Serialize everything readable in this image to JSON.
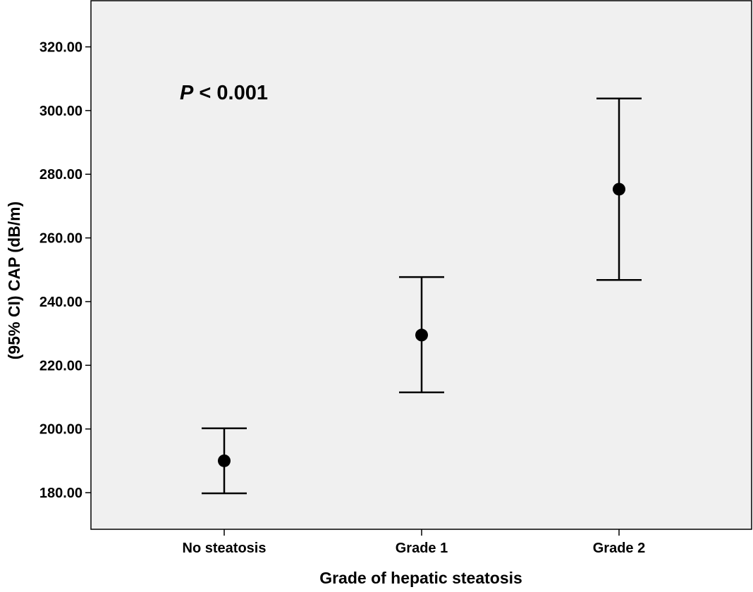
{
  "chart_data": {
    "type": "errorbar",
    "title": "",
    "xlabel": "Grade of hepatic steatosis",
    "ylabel": "(95% CI) CAP (dB/m)",
    "categories": [
      "No steatosis",
      "Grade 1",
      "Grade 2"
    ],
    "series": [
      {
        "points": [
          {
            "category": "No steatosis",
            "mean": 190,
            "lower": 179.8,
            "upper": 200.2
          },
          {
            "category": "Grade 1",
            "mean": 229.5,
            "lower": 211.5,
            "upper": 247.7
          },
          {
            "category": "Grade 2",
            "mean": 275.3,
            "lower": 246.8,
            "upper": 303.8
          }
        ]
      }
    ],
    "yticks": [
      180,
      200,
      220,
      240,
      260,
      280,
      300,
      320
    ],
    "ytick_labels": [
      "180.00",
      "200.00",
      "220.00",
      "240.00",
      "260.00",
      "280.00",
      "300.00",
      "320.00"
    ],
    "ylim": [
      168.5,
      334.5
    ],
    "grid": false,
    "annotation": {
      "italic_part": "P",
      "rest": " < 0.001"
    },
    "colors": {
      "plot_background": "#f0f0f0",
      "marks": "#000000",
      "page_background": "#ffffff"
    }
  }
}
